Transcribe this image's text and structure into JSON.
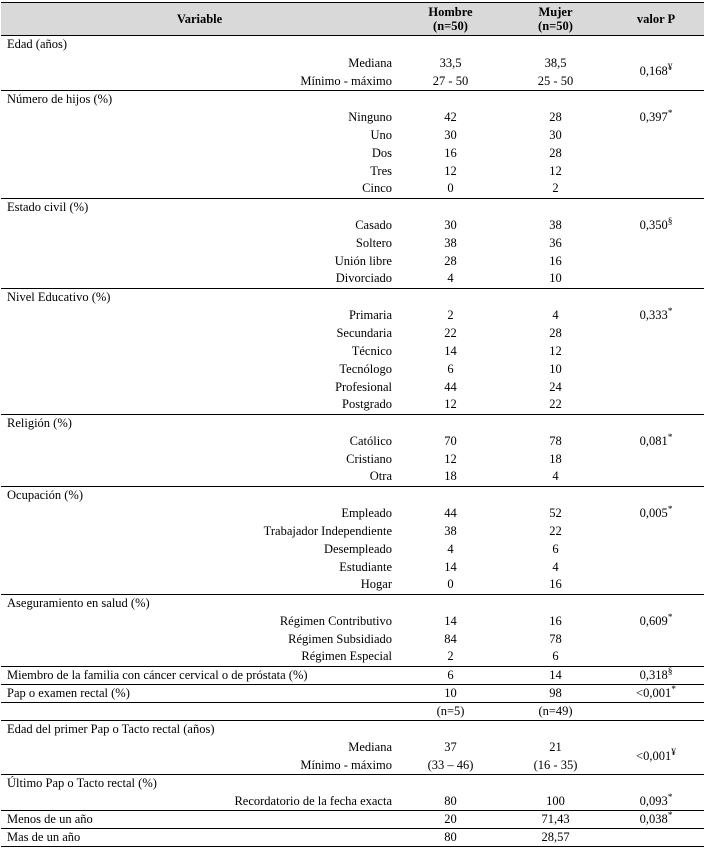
{
  "header": {
    "variable": "Variable",
    "hombre": "Hombre",
    "hombre_n": "(n=50)",
    "mujer": "Mujer",
    "mujer_n": "(n=50)",
    "pvalue": "valor P"
  },
  "rows": [
    {
      "type": "section",
      "label": "Edad (años)"
    },
    {
      "type": "multi",
      "labels": [
        "Mediana",
        "Mínimo - máximo"
      ],
      "hombre": [
        "33,5",
        "27 - 50"
      ],
      "mujer": [
        "38,5",
        "25 - 50"
      ],
      "p": "0,168",
      "sup": "¥"
    },
    {
      "type": "section",
      "label": "Número de hijos (%)"
    },
    {
      "type": "sub",
      "label": "Ninguno",
      "hombre": "42",
      "mujer": "28",
      "p": "0,397",
      "sup": "*"
    },
    {
      "type": "sub",
      "label": "Uno",
      "hombre": "30",
      "mujer": "30"
    },
    {
      "type": "sub",
      "label": "Dos",
      "hombre": "16",
      "mujer": "28"
    },
    {
      "type": "sub",
      "label": "Tres",
      "hombre": "12",
      "mujer": "12"
    },
    {
      "type": "sub",
      "label": "Cinco",
      "hombre": "0",
      "mujer": "2"
    },
    {
      "type": "section",
      "label": "Estado civil (%)"
    },
    {
      "type": "sub",
      "label": "Casado",
      "hombre": "30",
      "mujer": "38",
      "p": "0,350",
      "sup": "§"
    },
    {
      "type": "sub",
      "label": "Soltero",
      "hombre": "38",
      "mujer": "36"
    },
    {
      "type": "sub",
      "label": "Unión libre",
      "hombre": "28",
      "mujer": "16"
    },
    {
      "type": "sub",
      "label": "Divorciado",
      "hombre": "4",
      "mujer": "10"
    },
    {
      "type": "section",
      "label": "Nivel Educativo (%)"
    },
    {
      "type": "sub",
      "label": "Primaria",
      "hombre": "2",
      "mujer": "4",
      "p": "0,333",
      "sup": "*"
    },
    {
      "type": "sub",
      "label": "Secundaria",
      "hombre": "22",
      "mujer": "28"
    },
    {
      "type": "sub",
      "label": "Técnico",
      "hombre": "14",
      "mujer": "12"
    },
    {
      "type": "sub",
      "label": "Tecnólogo",
      "hombre": "6",
      "mujer": "10"
    },
    {
      "type": "sub",
      "label": "Profesional",
      "hombre": "44",
      "mujer": "24"
    },
    {
      "type": "sub",
      "label": "Postgrado",
      "hombre": "12",
      "mujer": "22"
    },
    {
      "type": "section",
      "label": "Religión (%)"
    },
    {
      "type": "sub",
      "label": "Católico",
      "hombre": "70",
      "mujer": "78",
      "p": "0,081",
      "sup": "*"
    },
    {
      "type": "sub",
      "label": "Cristiano",
      "hombre": "12",
      "mujer": "18"
    },
    {
      "type": "sub",
      "label": "Otra",
      "hombre": "18",
      "mujer": "4"
    },
    {
      "type": "section",
      "label": "Ocupación (%)"
    },
    {
      "type": "sub",
      "label": "Empleado",
      "hombre": "44",
      "mujer": "52",
      "p": "0,005",
      "sup": "*"
    },
    {
      "type": "sub",
      "label": "Trabajador Independiente",
      "hombre": "38",
      "mujer": "22"
    },
    {
      "type": "sub",
      "label": "Desempleado",
      "hombre": "4",
      "mujer": "6"
    },
    {
      "type": "sub",
      "label": "Estudiante",
      "hombre": "14",
      "mujer": "4"
    },
    {
      "type": "sub",
      "label": "Hogar",
      "hombre": "0",
      "mujer": "16"
    },
    {
      "type": "section",
      "label": "Aseguramiento en salud (%)"
    },
    {
      "type": "sub",
      "label": "Régimen Contributivo",
      "hombre": "14",
      "mujer": "16",
      "p": "0,609",
      "sup": "*"
    },
    {
      "type": "sub",
      "label": "Régimen Subsidiado",
      "hombre": "84",
      "mujer": "78"
    },
    {
      "type": "sub",
      "label": "Régimen Especial",
      "hombre": "2",
      "mujer": "6"
    },
    {
      "type": "flat",
      "label": "Miembro de la familia con cáncer cervical o de próstata (%)",
      "hombre": "6",
      "mujer": "14",
      "p": "0,318",
      "sup": "§"
    },
    {
      "type": "flat",
      "label": "Pap o examen rectal (%)",
      "hombre": "10",
      "mujer": "98",
      "p": "<0,001",
      "sup": "*"
    },
    {
      "type": "ncount",
      "hombre": "(n=5)",
      "mujer": "(n=49)"
    },
    {
      "type": "section",
      "label": "Edad del primer Pap o Tacto rectal (años)"
    },
    {
      "type": "multi",
      "labels": [
        "Mediana",
        "Mínimo - máximo"
      ],
      "hombre": [
        "37",
        "(33 – 46)"
      ],
      "mujer": [
        "21",
        "(16 - 35)"
      ],
      "p": "<0,001",
      "sup": "¥"
    },
    {
      "type": "section",
      "label": "Último Pap o Tacto rectal (%)"
    },
    {
      "type": "sub",
      "label": "Recordatorio de la fecha exacta",
      "hombre": "80",
      "mujer": "100",
      "p": "0,093",
      "sup": "*"
    },
    {
      "type": "flat",
      "label": "Menos de un año",
      "hombre": "20",
      "mujer": "71,43",
      "p": "0,038",
      "sup": "*"
    },
    {
      "type": "flat",
      "label": "Mas de un año",
      "hombre": "80",
      "mujer": "28,57"
    }
  ]
}
